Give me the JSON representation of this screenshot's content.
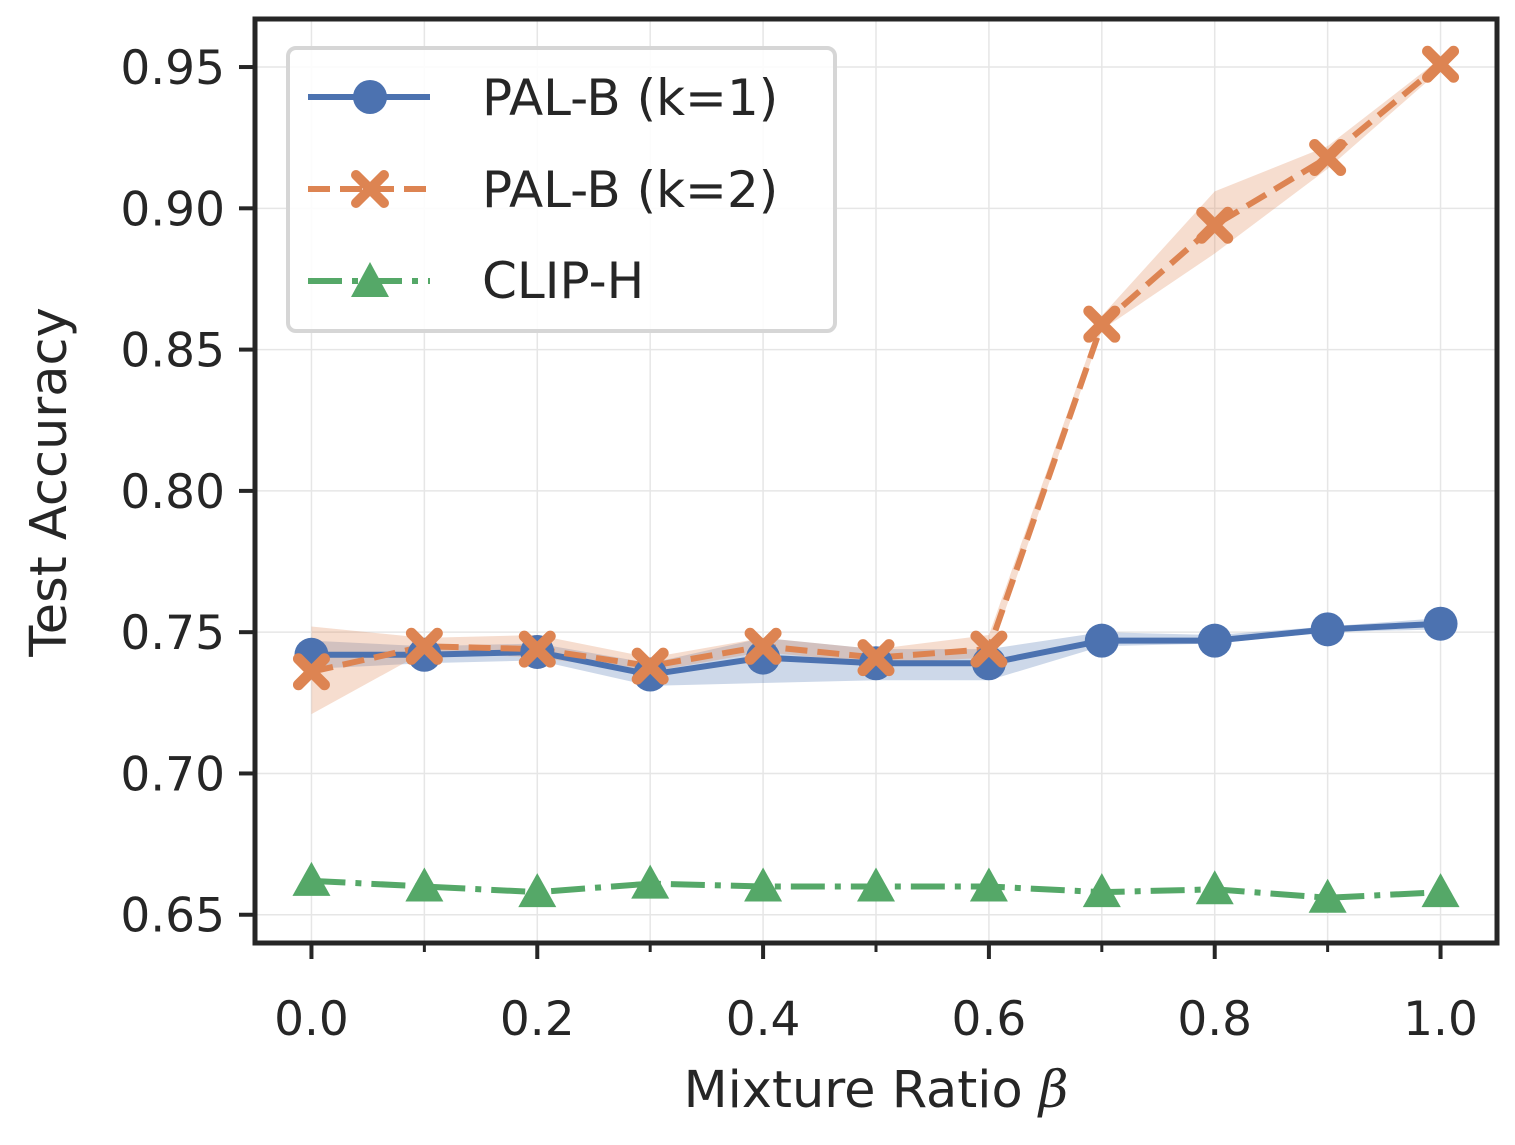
{
  "chart_data": {
    "type": "line",
    "title": "",
    "xlabel": "Mixture Ratio",
    "xlabel_symbol": "β",
    "ylabel": "Test Accuracy",
    "x": [
      0.0,
      0.1,
      0.2,
      0.3,
      0.4,
      0.5,
      0.6,
      0.7,
      0.8,
      0.9,
      1.0
    ],
    "xlim": [
      -0.05,
      1.05
    ],
    "ylim": [
      0.64,
      0.967
    ],
    "xticks": [
      "0.0",
      "0.2",
      "0.4",
      "0.6",
      "0.8",
      "1.0"
    ],
    "xtick_values": [
      0.0,
      0.2,
      0.4,
      0.6,
      0.8,
      1.0
    ],
    "yticks": [
      "0.65",
      "0.70",
      "0.75",
      "0.80",
      "0.85",
      "0.90",
      "0.95"
    ],
    "ytick_values": [
      0.65,
      0.7,
      0.75,
      0.8,
      0.85,
      0.9,
      0.95
    ],
    "grid": true,
    "legend_position": "top-left",
    "series": [
      {
        "name": "PAL-B (k=1)",
        "color": "#4c72b0",
        "linestyle": "solid",
        "marker": "circle",
        "values": [
          0.742,
          0.742,
          0.743,
          0.735,
          0.741,
          0.739,
          0.739,
          0.747,
          0.747,
          0.751,
          0.753
        ],
        "band_lower": [
          0.737,
          0.739,
          0.74,
          0.731,
          0.732,
          0.733,
          0.733,
          0.745,
          0.746,
          0.75,
          0.751
        ],
        "band_upper": [
          0.747,
          0.745,
          0.746,
          0.739,
          0.748,
          0.744,
          0.744,
          0.75,
          0.749,
          0.752,
          0.755
        ]
      },
      {
        "name": "PAL-B (k=2)",
        "color": "#dd8452",
        "linestyle": "dashed",
        "marker": "x",
        "values": [
          0.736,
          0.745,
          0.744,
          0.738,
          0.745,
          0.741,
          0.744,
          0.859,
          0.894,
          0.918,
          0.951
        ],
        "band_lower": [
          0.721,
          0.743,
          0.741,
          0.736,
          0.743,
          0.739,
          0.741,
          0.857,
          0.884,
          0.914,
          0.949
        ],
        "band_upper": [
          0.752,
          0.748,
          0.749,
          0.741,
          0.748,
          0.744,
          0.749,
          0.862,
          0.906,
          0.922,
          0.953
        ]
      },
      {
        "name": "CLIP-H",
        "color": "#55a868",
        "linestyle": "dashdot",
        "marker": "triangle",
        "values": [
          0.662,
          0.66,
          0.658,
          0.661,
          0.66,
          0.66,
          0.66,
          0.658,
          0.659,
          0.656,
          0.658
        ]
      }
    ]
  }
}
